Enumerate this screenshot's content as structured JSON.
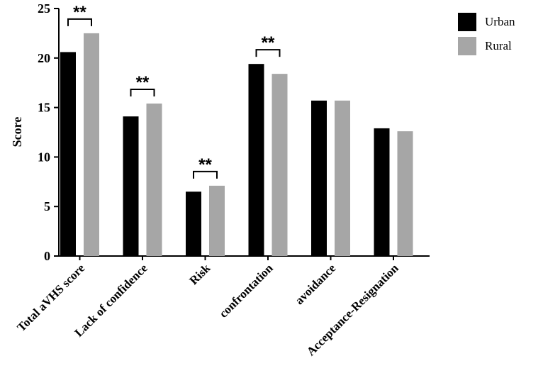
{
  "chart_data": {
    "type": "bar",
    "categories": [
      "Total aVHS score",
      "Lack of confidence",
      "Risk",
      "confrontation",
      "avoidance",
      "Acceptance-Resignation"
    ],
    "series": [
      {
        "name": "Urban",
        "color": "#000000",
        "values": [
          20.6,
          14.1,
          6.5,
          19.4,
          15.7,
          12.9
        ]
      },
      {
        "name": "Rural",
        "color": "#a6a6a6",
        "values": [
          22.5,
          15.4,
          7.1,
          18.4,
          15.7,
          12.6
        ]
      }
    ],
    "ylabel": "Score",
    "xlabel": "",
    "ylim": [
      0,
      25
    ],
    "yticks": [
      0,
      5,
      10,
      15,
      20,
      25
    ],
    "legend_position": "top-right",
    "significance": [
      {
        "category_index": 0,
        "label": "**"
      },
      {
        "category_index": 1,
        "label": "**"
      },
      {
        "category_index": 2,
        "label": "**"
      },
      {
        "category_index": 3,
        "label": "**"
      }
    ]
  }
}
